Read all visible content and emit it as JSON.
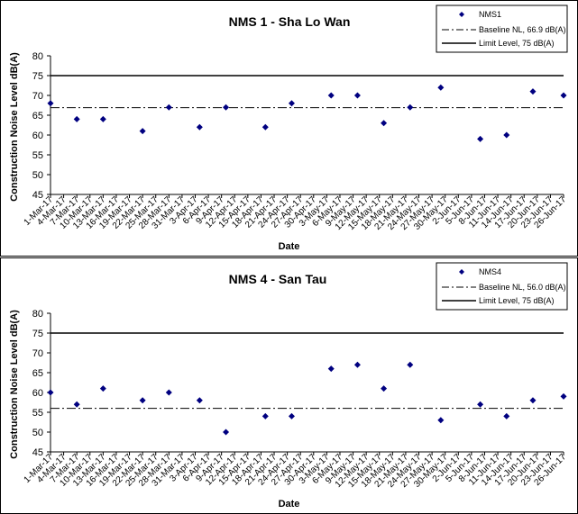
{
  "chart_data": [
    {
      "type": "scatter",
      "title": "NMS 1 - Sha Lo Wan",
      "xlabel": "Date",
      "ylabel": "Construction Noise Level  dB(A)",
      "ylim": [
        45,
        80
      ],
      "yticks": [
        "45",
        "50",
        "55",
        "60",
        "65",
        "70",
        "75",
        "80"
      ],
      "categories": [
        "1-Mar-17",
        "4-Mar-17",
        "7-Mar-17",
        "10-Mar-17",
        "13-Mar-17",
        "16-Mar-17",
        "19-Mar-17",
        "22-Mar-17",
        "25-Mar-17",
        "28-Mar-17",
        "31-Mar-17",
        "3-Apr-17",
        "6-Apr-17",
        "9-Apr-17",
        "12-Apr-17",
        "15-Apr-17",
        "18-Apr-17",
        "21-Apr-17",
        "24-Apr-17",
        "27-Apr-17",
        "30-Apr-17",
        "3-May-17",
        "6-May-17",
        "9-May-17",
        "12-May-17",
        "15-May-17",
        "18-May-17",
        "21-May-17",
        "24-May-17",
        "27-May-17",
        "30-May-17",
        "2-Jun-17",
        "5-Jun-17",
        "8-Jun-17",
        "11-Jun-17",
        "14-Jun-17",
        "17-Jun-17",
        "20-Jun-17",
        "23-Jun-17",
        "26-Jun-17"
      ],
      "series": [
        {
          "name": "NMS1",
          "color": "#000080",
          "points": [
            {
              "x": "1-Mar-17",
              "y": 68
            },
            {
              "x": "7-Mar-17",
              "y": 64
            },
            {
              "x": "13-Mar-17",
              "y": 64
            },
            {
              "x": "22-Mar-17",
              "y": 61
            },
            {
              "x": "28-Mar-17",
              "y": 67
            },
            {
              "x": "4-Apr-17",
              "y": 62
            },
            {
              "x": "10-Apr-17",
              "y": 67
            },
            {
              "x": "19-Apr-17",
              "y": 62
            },
            {
              "x": "25-Apr-17",
              "y": 68
            },
            {
              "x": "4-May-17",
              "y": 70
            },
            {
              "x": "10-May-17",
              "y": 70
            },
            {
              "x": "16-May-17",
              "y": 63
            },
            {
              "x": "22-May-17",
              "y": 67
            },
            {
              "x": "29-May-17",
              "y": 72
            },
            {
              "x": "7-Jun-17",
              "y": 59
            },
            {
              "x": "13-Jun-17",
              "y": 60
            },
            {
              "x": "19-Jun-17",
              "y": 71
            },
            {
              "x": "26-Jun-17",
              "y": 70
            }
          ]
        }
      ],
      "reference_lines": [
        {
          "name": "Baseline NL, 66.9 dB(A)",
          "y": 66.9,
          "style": "dash-dot"
        },
        {
          "name": "Limit Level, 75 dB(A)",
          "y": 75,
          "style": "solid"
        }
      ],
      "grid": false,
      "legend": "top-right"
    },
    {
      "type": "scatter",
      "title": "NMS 4 - San Tau",
      "xlabel": "Date",
      "ylabel": "Construction Noise Level  dB(A)",
      "ylim": [
        45,
        80
      ],
      "yticks": [
        "45",
        "50",
        "55",
        "60",
        "65",
        "70",
        "75",
        "80"
      ],
      "categories": [
        "1-Mar-17",
        "4-Mar-17",
        "7-Mar-17",
        "10-Mar-17",
        "13-Mar-17",
        "16-Mar-17",
        "19-Mar-17",
        "22-Mar-17",
        "25-Mar-17",
        "28-Mar-17",
        "31-Mar-17",
        "3-Apr-17",
        "6-Apr-17",
        "9-Apr-17",
        "12-Apr-17",
        "15-Apr-17",
        "18-Apr-17",
        "21-Apr-17",
        "24-Apr-17",
        "27-Apr-17",
        "30-Apr-17",
        "3-May-17",
        "6-May-17",
        "9-May-17",
        "12-May-17",
        "15-May-17",
        "18-May-17",
        "21-May-17",
        "24-May-17",
        "27-May-17",
        "30-May-17",
        "2-Jun-17",
        "5-Jun-17",
        "8-Jun-17",
        "11-Jun-17",
        "14-Jun-17",
        "17-Jun-17",
        "20-Jun-17",
        "23-Jun-17",
        "26-Jun-17"
      ],
      "series": [
        {
          "name": "NMS4",
          "color": "#000080",
          "points": [
            {
              "x": "1-Mar-17",
              "y": 60
            },
            {
              "x": "7-Mar-17",
              "y": 57
            },
            {
              "x": "13-Mar-17",
              "y": 61
            },
            {
              "x": "22-Mar-17",
              "y": 58
            },
            {
              "x": "28-Mar-17",
              "y": 60
            },
            {
              "x": "4-Apr-17",
              "y": 58
            },
            {
              "x": "10-Apr-17",
              "y": 50
            },
            {
              "x": "19-Apr-17",
              "y": 54
            },
            {
              "x": "25-Apr-17",
              "y": 54
            },
            {
              "x": "4-May-17",
              "y": 66
            },
            {
              "x": "10-May-17",
              "y": 67
            },
            {
              "x": "16-May-17",
              "y": 61
            },
            {
              "x": "22-May-17",
              "y": 67
            },
            {
              "x": "29-May-17",
              "y": 53
            },
            {
              "x": "7-Jun-17",
              "y": 57
            },
            {
              "x": "13-Jun-17",
              "y": 54
            },
            {
              "x": "19-Jun-17",
              "y": 58
            },
            {
              "x": "26-Jun-17",
              "y": 59
            }
          ]
        }
      ],
      "reference_lines": [
        {
          "name": "Baseline NL, 56.0 dB(A)",
          "y": 56.0,
          "style": "dash-dot"
        },
        {
          "name": "Limit Level, 75 dB(A)",
          "y": 75,
          "style": "solid"
        }
      ],
      "grid": false,
      "legend": "top-right"
    }
  ]
}
